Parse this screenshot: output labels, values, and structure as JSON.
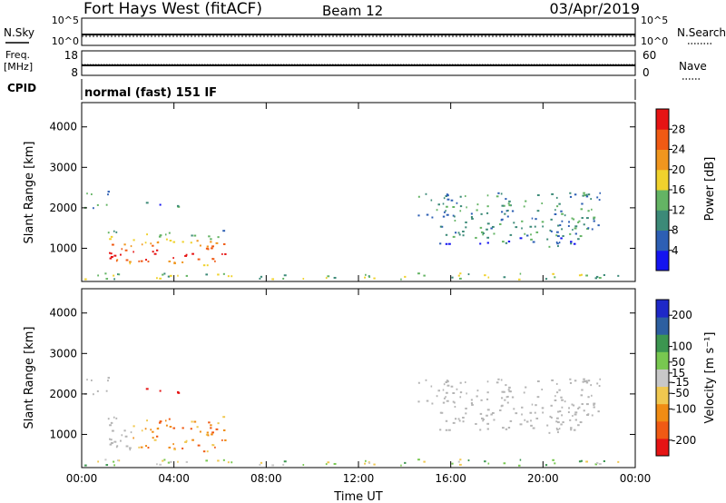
{
  "header": {
    "title": "Fort Hays West (fitACF)",
    "beam": "Beam 12",
    "date": "03/Apr/2019"
  },
  "strips": {
    "nsky_label": "N.Sky",
    "nsky_ticks": [
      "10^5",
      "10^0"
    ],
    "nsearch_label": "N.Search",
    "nsearch_ticks": [
      "10^5",
      "10^0"
    ],
    "freq_label": "Freq.",
    "freq_unit": "[MHz]",
    "freq_ticks": [
      "18",
      "8"
    ],
    "nave_label": "Nave",
    "nave_ticks": [
      "60",
      "0"
    ],
    "cpid_label": "CPID",
    "cpid_text": "normal (fast) 151 IF"
  },
  "colors": {
    "power": [
      "#1414f0",
      "#2d5fb4",
      "#3c8a78",
      "#64b464",
      "#f0d22d",
      "#f0961e",
      "#f05a14",
      "#e61414"
    ],
    "velocity": [
      "#e61414",
      "#f05a14",
      "#f08c14",
      "#f0c850",
      "#c8c8c8",
      "#78c850",
      "#3c9650",
      "#2d5fa0",
      "#1e28c8"
    ],
    "ground_grey": "#b4b4b4"
  },
  "chart_data": [
    {
      "type": "heatmap",
      "panel": "power",
      "ylabel": "Slant Range [km]",
      "yticks": [
        "4000",
        "3000",
        "2000",
        "1000"
      ],
      "ylim": [
        180,
        4600
      ],
      "xlim": [
        0,
        24
      ],
      "xticks": [
        "00:00",
        "04:00",
        "08:00",
        "12:00",
        "16:00",
        "20:00",
        "00:00"
      ],
      "colorbar_label": "Power [dB]",
      "colorbar_ticks": [
        "28",
        "24",
        "20",
        "16",
        "12",
        "8",
        "4"
      ],
      "colorbar_range": [
        0,
        32
      ],
      "features": [
        {
          "t0": 0.1,
          "t1": 1.2,
          "r0": 2000,
          "r1": 2450,
          "level": 10
        },
        {
          "t0": 1.0,
          "t1": 6.2,
          "r0": 600,
          "r1": 1500,
          "level": 22
        },
        {
          "t0": 2.5,
          "t1": 4.2,
          "r0": 2000,
          "r1": 2150,
          "level": 8
        },
        {
          "t0": 14.5,
          "t1": 22.5,
          "r0": 1300,
          "r1": 2400,
          "level": 10
        },
        {
          "t0": 15.5,
          "t1": 21.5,
          "r0": 1050,
          "r1": 1400,
          "level": 8
        },
        {
          "t0": 0,
          "t1": 24,
          "r0": 250,
          "r1": 400,
          "level": 14
        }
      ]
    },
    {
      "type": "heatmap",
      "panel": "velocity",
      "ylabel": "Slant Range [km]",
      "yticks": [
        "4000",
        "3000",
        "2000",
        "1000"
      ],
      "ylim": [
        180,
        4600
      ],
      "xlim": [
        0,
        24
      ],
      "xticks": [
        "00:00",
        "04:00",
        "08:00",
        "12:00",
        "16:00",
        "20:00",
        "00:00"
      ],
      "xlabel": "Time UT",
      "colorbar_label": "Velocity [m s⁻¹]",
      "colorbar_ticks": [
        "200",
        "100",
        "50",
        "15",
        "-15",
        "-50",
        "-100",
        "-200"
      ],
      "colorbar_range": [
        -250,
        250
      ]
    }
  ]
}
